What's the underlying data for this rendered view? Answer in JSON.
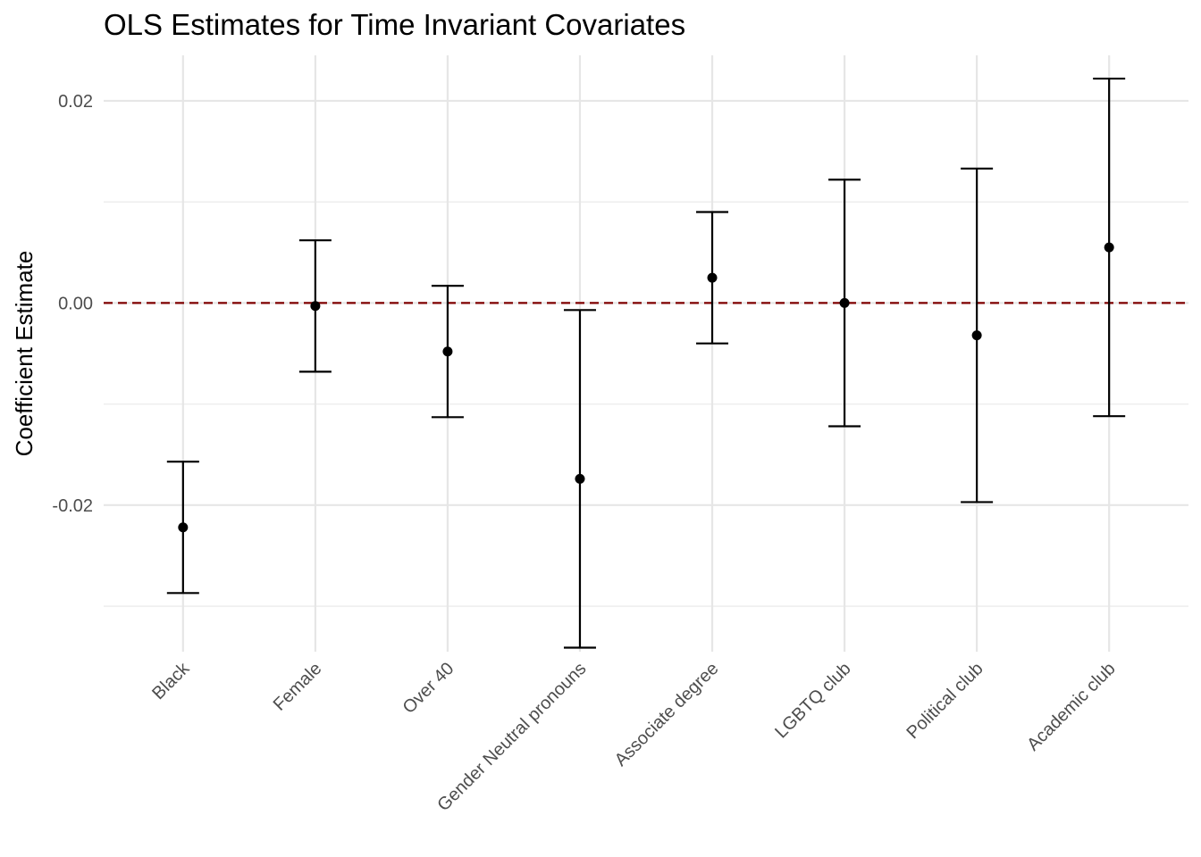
{
  "chart_data": {
    "type": "errorbar",
    "title": "OLS Estimates for Time Invariant Covariates",
    "xlabel": "",
    "ylabel": "Coefficient Estimate",
    "categories": [
      "Black",
      "Female",
      "Over 40",
      "Gender Neutral pronouns",
      "Associate degree",
      "LGBTQ club",
      "Political club",
      "Academic club"
    ],
    "estimates": [
      -0.0222,
      -0.0003,
      -0.0048,
      -0.0174,
      0.0025,
      0.0,
      -0.0032,
      0.0055
    ],
    "lower": [
      -0.0287,
      -0.0068,
      -0.0113,
      -0.0341,
      -0.004,
      -0.0122,
      -0.0197,
      -0.0112
    ],
    "upper": [
      -0.0157,
      0.0062,
      0.0017,
      -0.0007,
      0.009,
      0.0122,
      0.0133,
      0.0222
    ],
    "ylim": [
      -0.0345,
      0.0245
    ],
    "yticks": [
      -0.02,
      0.0,
      0.02
    ],
    "ytick_labels": [
      "-0.02",
      "0.00",
      "0.02"
    ],
    "yminor": [
      -0.03,
      -0.01,
      0.01
    ],
    "reference_line": 0.0,
    "reference_line_color": "#7f0000",
    "grid": true,
    "legend": "none"
  }
}
